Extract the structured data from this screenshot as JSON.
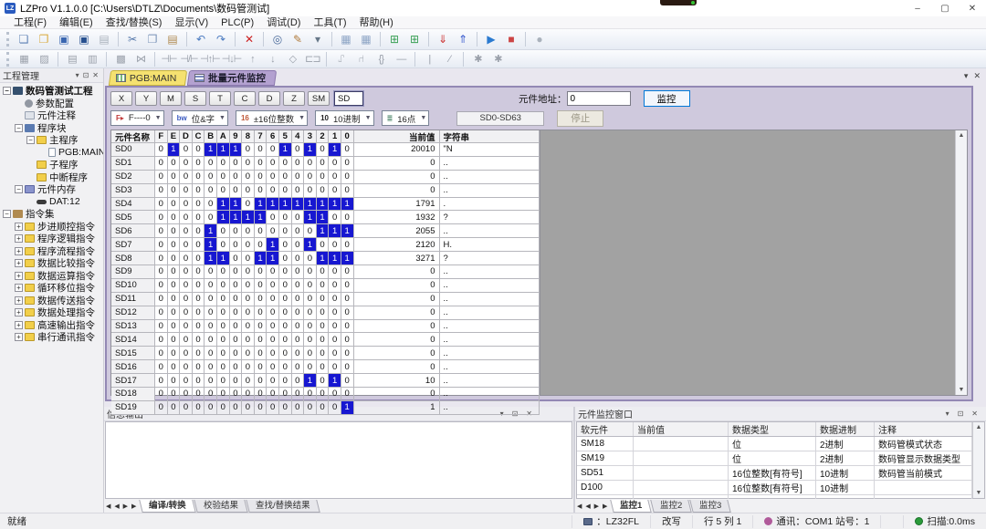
{
  "window": {
    "app_initials": "LZ",
    "title": "LZPro V1.1.0.0 [C:\\Users\\DTLZ\\Documents\\数码管测试]",
    "controls": {
      "minimize": "–",
      "maximize": "▢",
      "close": "✕"
    }
  },
  "menu": {
    "items": [
      "工程(F)",
      "编辑(E)",
      "查找/替换(S)",
      "显示(V)",
      "PLC(P)",
      "调试(D)",
      "工具(T)",
      "帮助(H)"
    ]
  },
  "toolbar_main": [
    {
      "name": "new-file-icon",
      "glyph": "❏",
      "color": "#5b7fb4"
    },
    {
      "name": "open-file-icon",
      "glyph": "❐",
      "color": "#d9a93a"
    },
    {
      "name": "save-icon",
      "glyph": "▣",
      "color": "#3a66b0"
    },
    {
      "name": "save-all-icon",
      "glyph": "▣",
      "color": "#27508f"
    },
    {
      "name": "print-icon",
      "glyph": "▤",
      "color": "#aab2bc"
    },
    {
      "name": "sep",
      "glyph": "",
      "color": ""
    },
    {
      "name": "cut-icon",
      "glyph": "✂",
      "color": "#5577aa"
    },
    {
      "name": "copy-icon",
      "glyph": "❐",
      "color": "#7a93b8"
    },
    {
      "name": "paste-icon",
      "glyph": "▤",
      "color": "#b08a50"
    },
    {
      "name": "sep",
      "glyph": "",
      "color": ""
    },
    {
      "name": "undo-icon",
      "glyph": "↶",
      "color": "#4a7ac0"
    },
    {
      "name": "redo-icon",
      "glyph": "↷",
      "color": "#4a7ac0"
    },
    {
      "name": "sep",
      "glyph": "",
      "color": ""
    },
    {
      "name": "delete-icon",
      "glyph": "✕",
      "color": "#cc2222"
    },
    {
      "name": "sep",
      "glyph": "",
      "color": ""
    },
    {
      "name": "find-icon",
      "glyph": "◎",
      "color": "#4a6a9a"
    },
    {
      "name": "edit-pen-icon",
      "glyph": "✎",
      "color": "#b07a3a"
    },
    {
      "name": "overflow-icon",
      "glyph": "▾",
      "color": "#667788"
    },
    {
      "name": "sep",
      "glyph": "",
      "color": ""
    },
    {
      "name": "plc-keypad-1-icon",
      "glyph": "▦",
      "color": "#8fa6c6"
    },
    {
      "name": "plc-keypad-2-icon",
      "glyph": "▦",
      "color": "#8fa6c6"
    },
    {
      "name": "sep",
      "glyph": "",
      "color": ""
    },
    {
      "name": "insert-row-icon",
      "glyph": "⊞",
      "color": "#3aa055"
    },
    {
      "name": "insert-col-icon",
      "glyph": "⊞",
      "color": "#3aa055"
    },
    {
      "name": "sep",
      "glyph": "",
      "color": ""
    },
    {
      "name": "download-plc-icon",
      "glyph": "⇓",
      "color": "#cc3333"
    },
    {
      "name": "upload-plc-icon",
      "glyph": "⇑",
      "color": "#3355cc"
    },
    {
      "name": "sep",
      "glyph": "",
      "color": ""
    },
    {
      "name": "run-icon",
      "glyph": "▶",
      "color": "#2a7ad0"
    },
    {
      "name": "stop-icon",
      "glyph": "■",
      "color": "#cc4444"
    },
    {
      "name": "sep",
      "glyph": "",
      "color": ""
    },
    {
      "name": "monitor-mode-icon",
      "glyph": "●",
      "color": "#aab2bc"
    }
  ],
  "toolbar_ladder": [
    {
      "name": "ladder-zoom-in-icon",
      "glyph": "▦"
    },
    {
      "name": "ladder-zoom-out-icon",
      "glyph": "▨"
    },
    {
      "name": "ladder-grid-icon",
      "glyph": "▤"
    },
    {
      "name": "ladder-grid2-icon",
      "glyph": "▥"
    },
    {
      "name": "ladder-comment-icon",
      "glyph": "▩"
    },
    {
      "name": "ladder-wire-icon",
      "glyph": "⋈"
    },
    {
      "name": "contact-no-icon",
      "glyph": "⊣⊢"
    },
    {
      "name": "contact-nc-icon",
      "glyph": "⊣/⊢"
    },
    {
      "name": "contact-rise-icon",
      "glyph": "⊣↑⊢"
    },
    {
      "name": "contact-fall-icon",
      "glyph": "⊣↓⊢"
    },
    {
      "name": "pulse-up-icon",
      "glyph": "↑"
    },
    {
      "name": "pulse-down-icon",
      "glyph": "↓"
    },
    {
      "name": "coil-icon",
      "glyph": "◇"
    },
    {
      "name": "box-instr-icon",
      "glyph": "⊏⊐"
    },
    {
      "name": "set-coil-icon",
      "glyph": "⑀"
    },
    {
      "name": "reset-coil-icon",
      "glyph": "⑁"
    },
    {
      "name": "brace-icon",
      "glyph": "{}"
    },
    {
      "name": "hline-icon",
      "glyph": "—"
    },
    {
      "name": "vline-icon",
      "glyph": "|"
    },
    {
      "name": "del-line-icon",
      "glyph": "⁄"
    },
    {
      "name": "err1-icon",
      "glyph": "✱"
    },
    {
      "name": "err2-icon",
      "glyph": "✱"
    }
  ],
  "project_tree": {
    "title": "工程管理",
    "nodes": [
      {
        "label": "数码管测试工程",
        "depth": 0,
        "icon": "project",
        "expand": "minus",
        "bold": true
      },
      {
        "label": "参数配置",
        "depth": 1,
        "icon": "config",
        "expand": null,
        "bold": false
      },
      {
        "label": "元件注释",
        "depth": 1,
        "icon": "note",
        "expand": null,
        "bold": false
      },
      {
        "label": "程序块",
        "depth": 1,
        "icon": "blocks",
        "expand": "minus",
        "bold": false
      },
      {
        "label": "主程序",
        "depth": 2,
        "icon": "folder",
        "expand": "minus",
        "bold": false
      },
      {
        "label": "PGB:MAIN",
        "depth": 3,
        "icon": "page",
        "expand": null,
        "bold": false
      },
      {
        "label": "子程序",
        "depth": 2,
        "icon": "folder",
        "expand": null,
        "bold": false
      },
      {
        "label": "中断程序",
        "depth": 2,
        "icon": "folder",
        "expand": null,
        "bold": false
      },
      {
        "label": "元件内存",
        "depth": 1,
        "icon": "memory",
        "expand": "minus",
        "bold": false
      },
      {
        "label": "DAT:12",
        "depth": 2,
        "icon": "dat",
        "expand": null,
        "bold": false
      },
      {
        "label": "指令集",
        "depth": 0,
        "icon": "instr",
        "expand": "minus",
        "bold": false
      },
      {
        "label": "步进顺控指令",
        "depth": 1,
        "icon": "folder",
        "expand": "plus",
        "bold": false
      },
      {
        "label": "程序逻辑指令",
        "depth": 1,
        "icon": "folder",
        "expand": "plus",
        "bold": false
      },
      {
        "label": "程序流程指令",
        "depth": 1,
        "icon": "folder",
        "expand": "plus",
        "bold": false
      },
      {
        "label": "数据比较指令",
        "depth": 1,
        "icon": "folder",
        "expand": "plus",
        "bold": false
      },
      {
        "label": "数据运算指令",
        "depth": 1,
        "icon": "folder",
        "expand": "plus",
        "bold": false
      },
      {
        "label": "循环移位指令",
        "depth": 1,
        "icon": "folder",
        "expand": "plus",
        "bold": false
      },
      {
        "label": "数据传送指令",
        "depth": 1,
        "icon": "folder",
        "expand": "plus",
        "bold": false
      },
      {
        "label": "数据处理指令",
        "depth": 1,
        "icon": "folder",
        "expand": "plus",
        "bold": false
      },
      {
        "label": "高速输出指令",
        "depth": 1,
        "icon": "folder",
        "expand": "plus",
        "bold": false
      },
      {
        "label": "串行通讯指令",
        "depth": 1,
        "icon": "folder",
        "expand": "plus",
        "bold": false
      }
    ]
  },
  "doc_tabs": {
    "tab1": "PGB:MAIN",
    "tab2": "批量元件监控"
  },
  "monitor": {
    "device_buttons": [
      "X",
      "Y",
      "M",
      "S",
      "T",
      "C",
      "D",
      "Z",
      "SM"
    ],
    "device_type_value": "SD",
    "address_label": "元件地址：",
    "address_value": "0",
    "monitor_button": "监控",
    "stop_button": "停止",
    "filters": [
      {
        "name": "filter-dropdown",
        "badge": "F▸",
        "badge_color": "#c03a3a",
        "label": "F----0"
      },
      {
        "name": "bitword-dropdown",
        "badge": "bw",
        "badge_color": "#3a5ac0",
        "label": "位&字"
      },
      {
        "name": "datatype-dropdown",
        "badge": "16",
        "badge_color": "#c05a3a",
        "label": "±16位整数"
      },
      {
        "name": "radix-dropdown",
        "badge": "10",
        "badge_color": "#222222",
        "label": "10进制"
      },
      {
        "name": "points-dropdown",
        "badge": "≣",
        "badge_color": "#3a7a5a",
        "label": "16点"
      }
    ],
    "range_text": "SD0-SD63",
    "table": {
      "name_header": "元件名称",
      "bit_headers": [
        "F",
        "E",
        "D",
        "C",
        "B",
        "A",
        "9",
        "8",
        "7",
        "6",
        "5",
        "4",
        "3",
        "2",
        "1",
        "0"
      ],
      "value_header": "当前值",
      "string_header": "字符串",
      "rows": [
        {
          "name": "SD0",
          "bits": "0100111000101010",
          "value": "20010",
          "str": "\"N"
        },
        {
          "name": "SD1",
          "bits": "0000000000000000",
          "value": "0",
          "str": ".."
        },
        {
          "name": "SD2",
          "bits": "0000000000000000",
          "value": "0",
          "str": ".."
        },
        {
          "name": "SD3",
          "bits": "0000000000000000",
          "value": "0",
          "str": ".."
        },
        {
          "name": "SD4",
          "bits": "0000011011111111",
          "value": "1791",
          "str": "  ."
        },
        {
          "name": "SD5",
          "bits": "0000011110001100",
          "value": "1932",
          "str": "?"
        },
        {
          "name": "SD6",
          "bits": "0000100000000111",
          "value": "2055",
          "str": ".."
        },
        {
          "name": "SD7",
          "bits": "0000100001001000",
          "value": "2120",
          "str": "H."
        },
        {
          "name": "SD8",
          "bits": "0000110011000111",
          "value": "3271",
          "str": "?"
        },
        {
          "name": "SD9",
          "bits": "0000000000000000",
          "value": "0",
          "str": ".."
        },
        {
          "name": "SD10",
          "bits": "0000000000000000",
          "value": "0",
          "str": ".."
        },
        {
          "name": "SD11",
          "bits": "0000000000000000",
          "value": "0",
          "str": ".."
        },
        {
          "name": "SD12",
          "bits": "0000000000000000",
          "value": "0",
          "str": ".."
        },
        {
          "name": "SD13",
          "bits": "0000000000000000",
          "value": "0",
          "str": ".."
        },
        {
          "name": "SD14",
          "bits": "0000000000000000",
          "value": "0",
          "str": ".."
        },
        {
          "name": "SD15",
          "bits": "0000000000000000",
          "value": "0",
          "str": ".."
        },
        {
          "name": "SD16",
          "bits": "0000000000000000",
          "value": "0",
          "str": ".."
        },
        {
          "name": "SD17",
          "bits": "0000000000001010",
          "value": "10",
          "str": ".."
        },
        {
          "name": "SD18",
          "bits": "0000000000000000",
          "value": "0",
          "str": ".."
        },
        {
          "name": "SD19",
          "bits": "0000000000000001",
          "value": "1",
          "str": ".."
        }
      ]
    }
  },
  "output_panel": {
    "title": "信息输出",
    "tabs": [
      {
        "label": "编译/转换",
        "active": true
      },
      {
        "label": "校验结果",
        "active": false
      },
      {
        "label": "查找/替换结果",
        "active": false
      }
    ]
  },
  "watch_panel": {
    "title": "元件监控窗口",
    "headers": [
      "软元件",
      "当前值",
      "数据类型",
      "数据进制",
      "注释"
    ],
    "rows": [
      [
        "SM18",
        "",
        "位",
        "2进制",
        "数码管模式状态"
      ],
      [
        "SM19",
        "",
        "位",
        "2进制",
        "数码管显示数据类型"
      ],
      [
        "SD51",
        "",
        "16位整数[有符号]",
        "10进制",
        "数码管当前模式"
      ],
      [
        "D100",
        "",
        "16位整数[有符号]",
        "10进制",
        ""
      ],
      [
        "",
        "",
        "",
        "",
        ""
      ]
    ],
    "tabs": [
      {
        "label": "监控1",
        "active": true
      },
      {
        "label": "监控2",
        "active": false
      },
      {
        "label": "监控3",
        "active": false
      }
    ]
  },
  "status_bar": {
    "ready": "就绪",
    "segments": [
      {
        "icon": "chip",
        "text": "：LZ32FL"
      },
      {
        "icon": "",
        "text": "改写"
      },
      {
        "icon": "",
        "text": "行 5 列 1"
      },
      {
        "icon": "comm",
        "text": "通讯：COM1 站号：1"
      },
      {
        "icon": "",
        "text": ""
      },
      {
        "icon": "scan",
        "text": "扫描:0.0ms"
      }
    ]
  }
}
